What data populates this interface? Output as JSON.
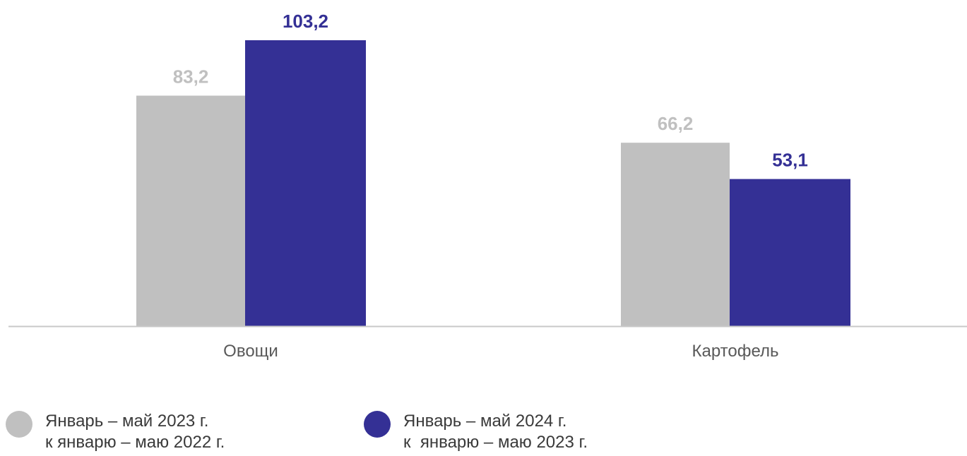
{
  "chart_data": {
    "type": "bar",
    "categories": [
      "Овощи",
      "Картофель"
    ],
    "series": [
      {
        "name": "Январь – май 2023 г. к январю – маю 2022 г.",
        "name_lines": [
          "Январь – май 2023 г.",
          "к январю – маю 2022 г."
        ],
        "values": [
          83.2,
          66.2
        ],
        "labels": [
          "83,2",
          "66,2"
        ],
        "color": "#c0c0c0",
        "label_color": "#c0c0c0"
      },
      {
        "name": "Январь – май 2024 г. к январю – маю 2023 г.",
        "name_lines": [
          "Январь – май 2024 г.",
          "к  январю – маю 2023 г."
        ],
        "values": [
          103.2,
          53.1
        ],
        "labels": [
          "103,2",
          "53,1"
        ],
        "color": "#343095",
        "label_color": "#343095"
      }
    ],
    "ylim": [
      0,
      103.2
    ],
    "grid": false,
    "legend_position": "bottom-left",
    "axis_color": "#c8c8c8",
    "category_label_color": "#595959"
  }
}
